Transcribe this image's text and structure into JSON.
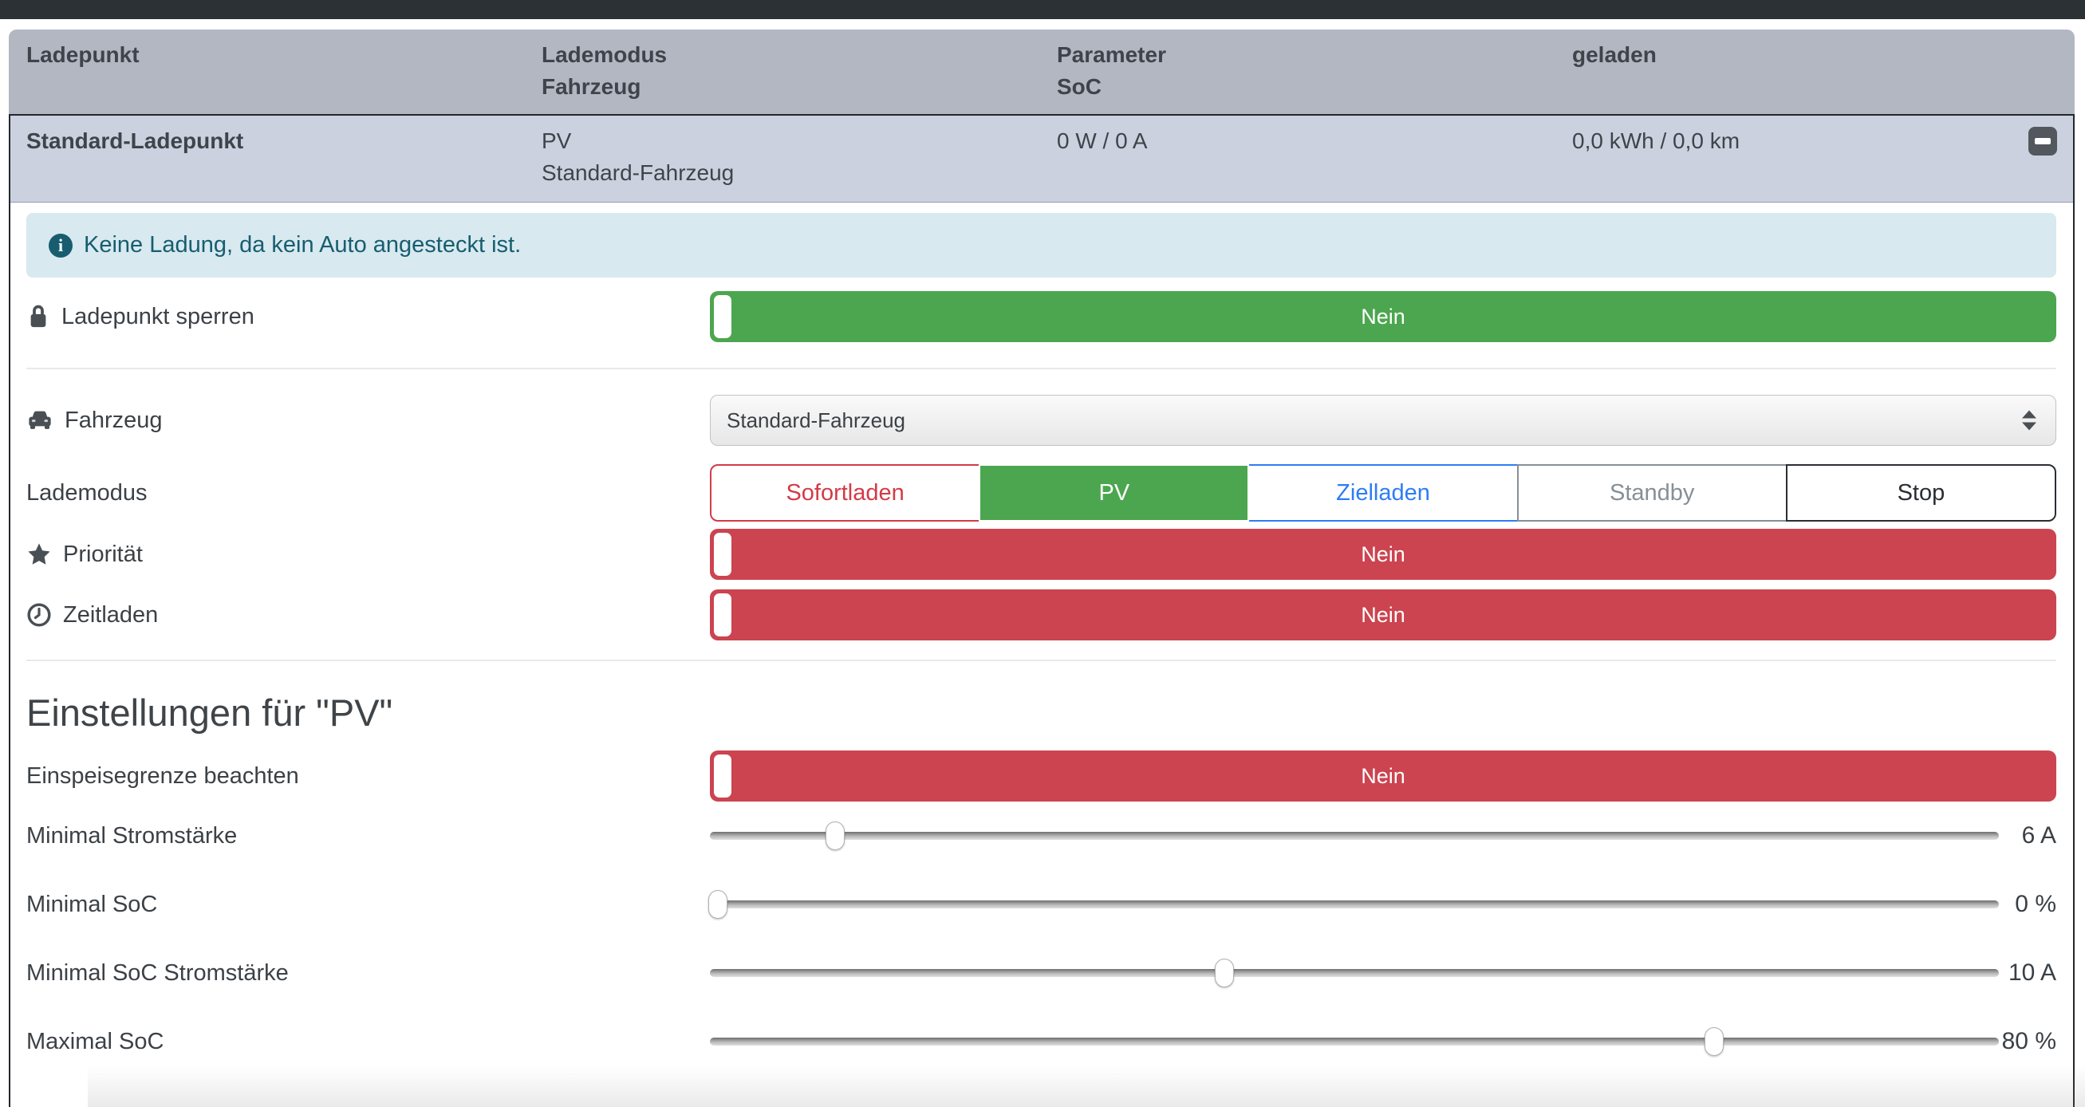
{
  "table": {
    "columns": [
      {
        "line1": "Ladepunkt",
        "line2": ""
      },
      {
        "line1": "Lademodus",
        "line2": "Fahrzeug"
      },
      {
        "line1": "Parameter",
        "line2": "SoC"
      },
      {
        "line1": "geladen",
        "line2": ""
      }
    ],
    "row": {
      "name": "Standard-Ladepunkt",
      "mode": "PV",
      "vehicle": "Standard-Fahrzeug",
      "power": "0 W / 0 A",
      "soc": "",
      "charged": "0,0 kWh / 0,0 km"
    }
  },
  "alert": {
    "message": "Keine Ladung, da kein Auto angesteckt ist."
  },
  "rows": {
    "lock": {
      "label": "Ladepunkt sperren",
      "value": "Nein"
    },
    "vehicle": {
      "label": "Fahrzeug",
      "selected": "Standard-Fahrzeug"
    },
    "chargemode": {
      "label": "Lademodus",
      "selected": "PV",
      "options": [
        "Sofortladen",
        "PV",
        "Zielladen",
        "Standby",
        "Stop"
      ]
    },
    "priority": {
      "label": "Priorität",
      "value": "Nein"
    },
    "timecharge": {
      "label": "Zeitladen",
      "value": "Nein"
    }
  },
  "pv_settings": {
    "heading": "Einstellungen für \"PV\"",
    "feed_in_limit": {
      "label": "Einspeisegrenze beachten",
      "value": "Nein"
    },
    "sliders": [
      {
        "label": "Minimal Stromstärke",
        "value": "6 A",
        "percent": 9.7
      },
      {
        "label": "Minimal SoC",
        "value": "0 %",
        "percent": 0.6
      },
      {
        "label": "Minimal SoC Stromstärke",
        "value": "10 A",
        "percent": 39.9
      },
      {
        "label": "Maximal SoC",
        "value": "80 %",
        "percent": 77.9
      }
    ]
  },
  "colors": {
    "navbar": "#2c3136",
    "table_header_bg": "#b3b7c2",
    "row_bg": "#ccd1df",
    "alert_bg": "#d8e9f0",
    "alert_text": "#175d6f",
    "toggle_on_green": "#4ca64f",
    "toggle_off_red": "#cb4450",
    "mode_red": "#d23b47",
    "mode_green": "#4ca64f",
    "mode_blue": "#2e7cf6"
  }
}
